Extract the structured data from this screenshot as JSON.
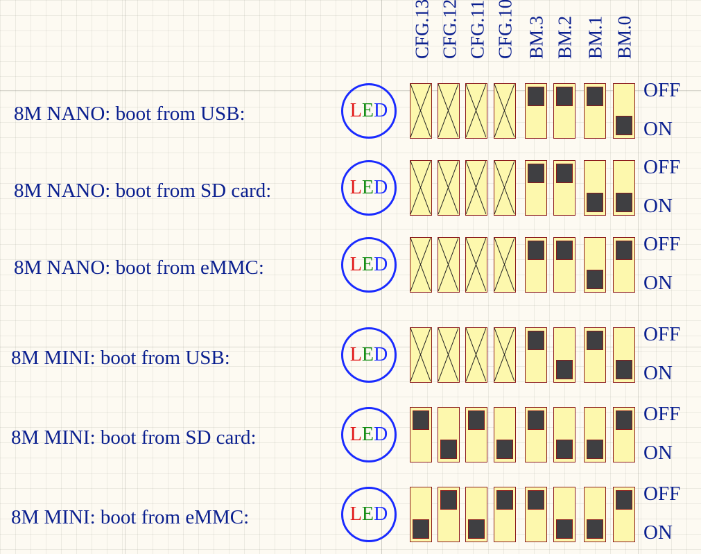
{
  "columns": [
    "CFG.13",
    "CFG.12",
    "CFG.11",
    "CFG.10",
    "BM.3",
    "BM.2",
    "BM.1",
    "BM.0"
  ],
  "led": {
    "l": "L",
    "e": "E",
    "d": "D"
  },
  "state_labels": {
    "off": "OFF",
    "on": "ON"
  },
  "rows": [
    {
      "label": "8M NANO: boot from USB:",
      "switches": [
        "x",
        "x",
        "x",
        "x",
        "off",
        "off",
        "off",
        "on"
      ]
    },
    {
      "label": "8M NANO: boot from SD card:",
      "switches": [
        "x",
        "x",
        "x",
        "x",
        "off",
        "off",
        "on",
        "on"
      ]
    },
    {
      "label": "8M NANO: boot from eMMC:",
      "switches": [
        "x",
        "x",
        "x",
        "x",
        "off",
        "off",
        "on",
        "off"
      ]
    },
    {
      "label": "8M MINI: boot from USB:",
      "switches": [
        "x",
        "x",
        "x",
        "x",
        "off",
        "on",
        "off",
        "on"
      ]
    },
    {
      "label": "8M MINI: boot from SD card:",
      "switches": [
        "off",
        "on",
        "off",
        "on",
        "off",
        "on",
        "on",
        "off"
      ]
    },
    {
      "label": "8M MINI: boot from eMMC:",
      "switches": [
        "on",
        "off",
        "on",
        "off",
        "off",
        "on",
        "on",
        "off"
      ]
    }
  ],
  "colors": {
    "text": "#0a1f8f",
    "switch_body": "#fdf8ad",
    "switch_border": "#8b1a1a",
    "knob": "#3f3f42",
    "led_ring": "#1a2bff",
    "led_l": "#e11616",
    "led_e": "#128c12",
    "led_d": "#1a2bff"
  }
}
